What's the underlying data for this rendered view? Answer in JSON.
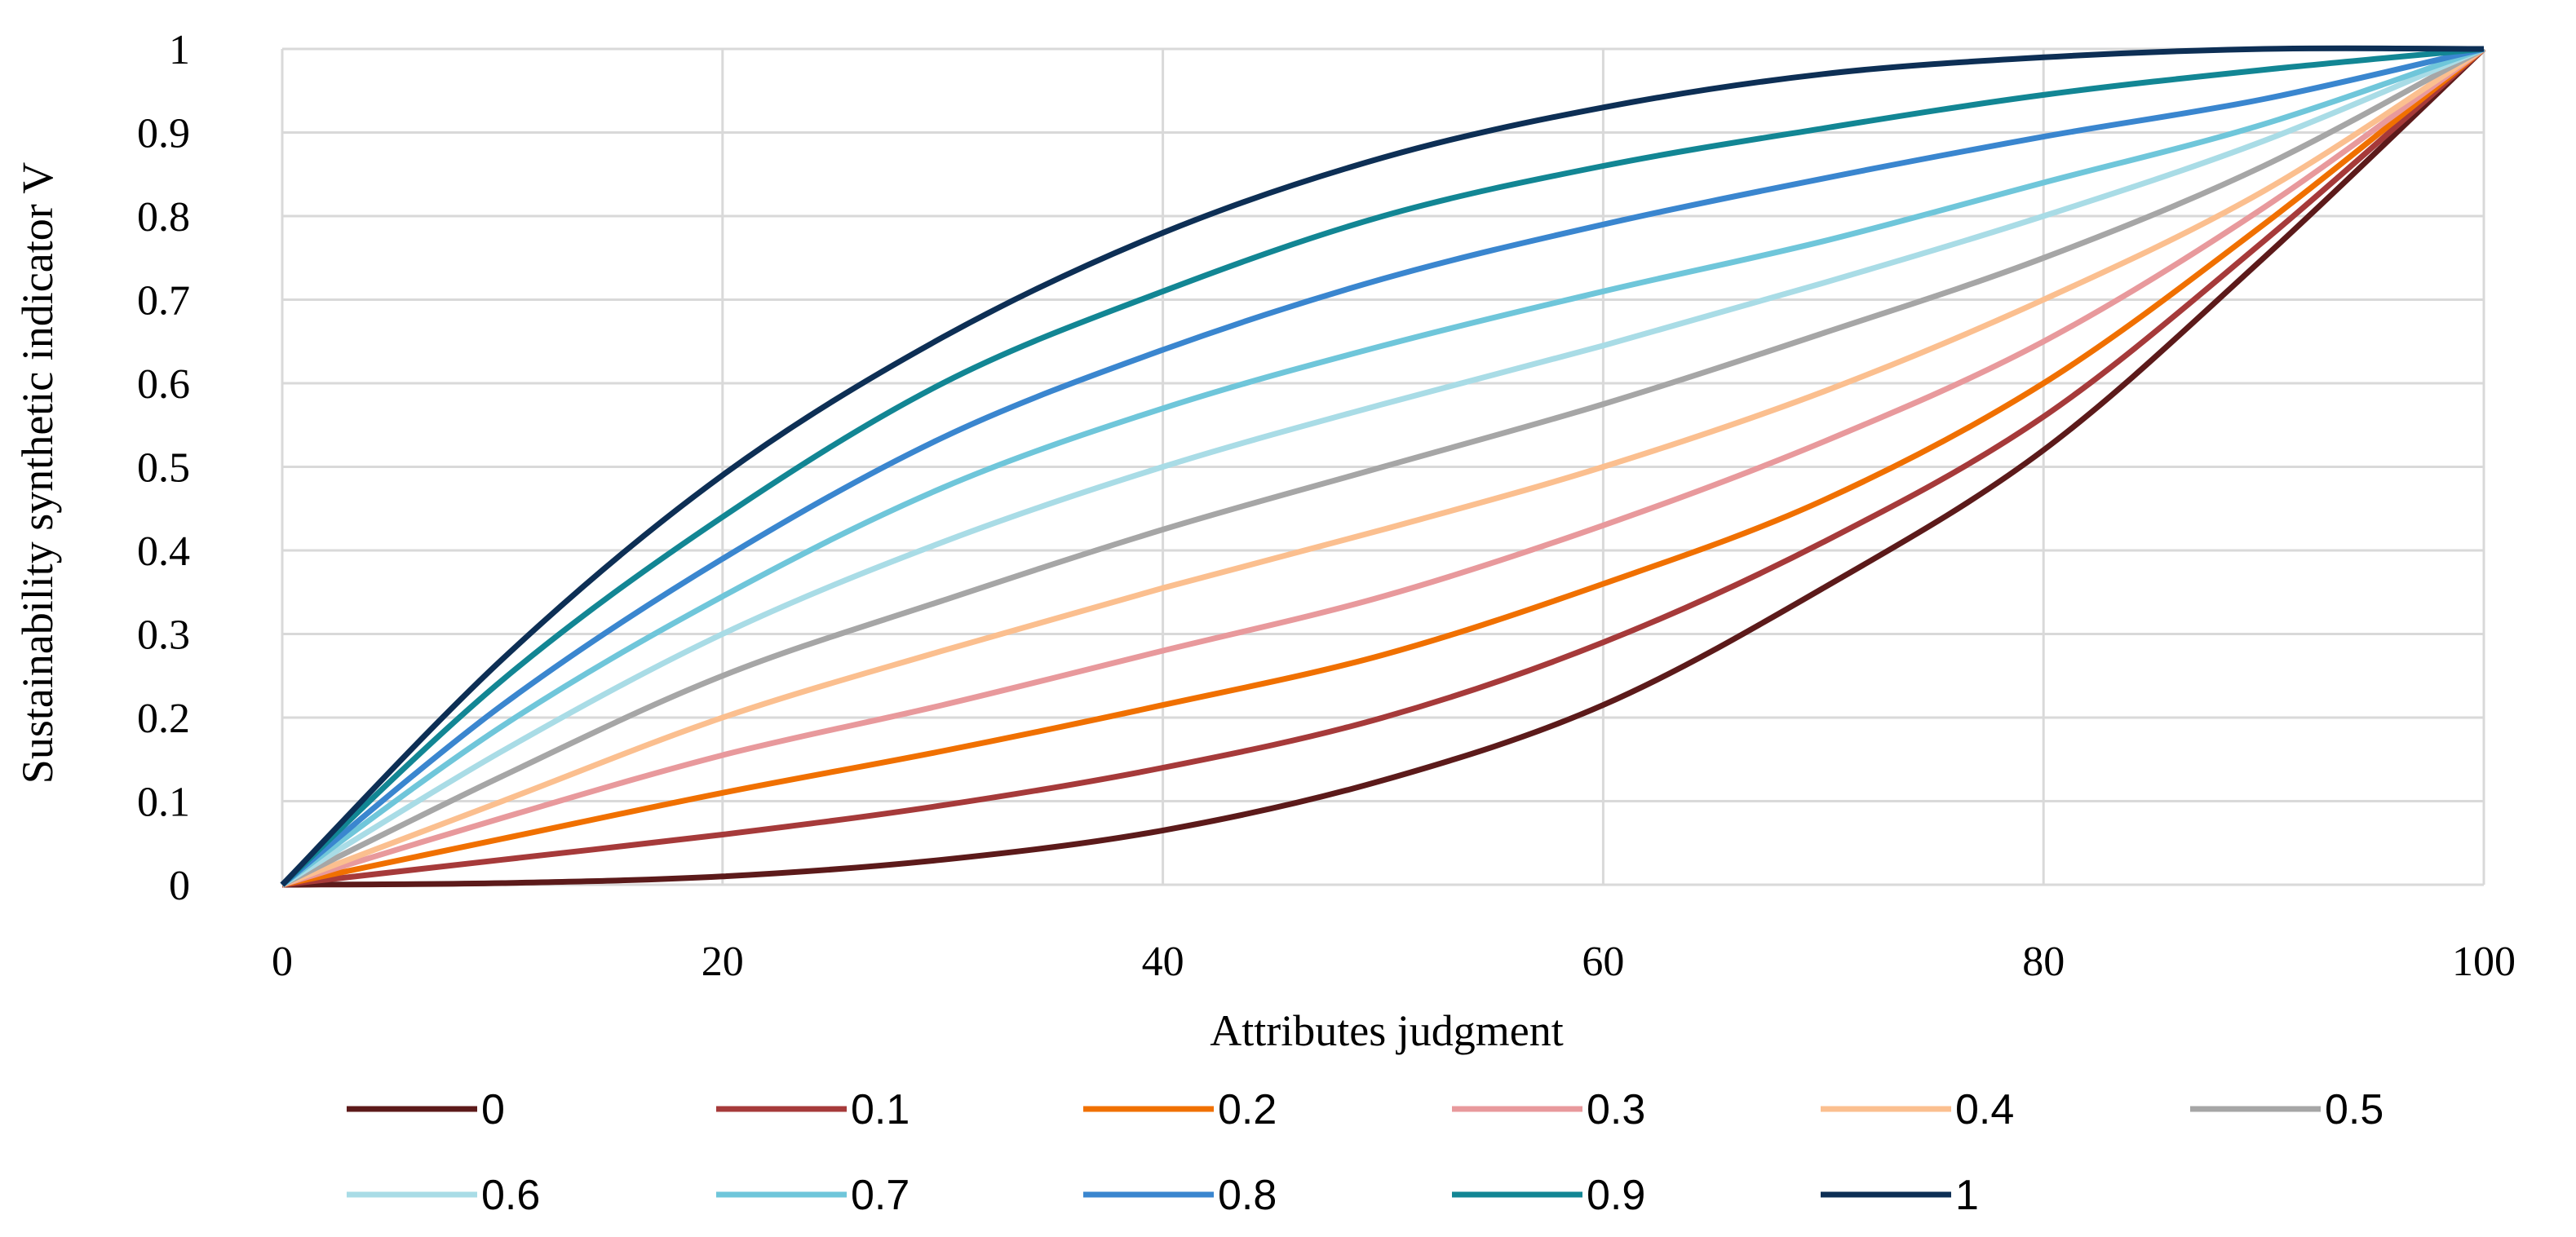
{
  "chart_data": {
    "type": "line",
    "title": "",
    "xlabel": "Attributes judgment",
    "ylabel": "Sustainability synthetic indicator V",
    "xlim": [
      0,
      100
    ],
    "ylim": [
      0,
      1
    ],
    "x_ticks": [
      "0",
      "20",
      "40",
      "60",
      "80",
      "100"
    ],
    "y_ticks": [
      "0",
      "0.1",
      "0.2",
      "0.3",
      "0.4",
      "0.5",
      "0.6",
      "0.7",
      "0.8",
      "0.9",
      "1"
    ],
    "grid": true,
    "legend_position": "bottom",
    "x": [
      0,
      10,
      20,
      30,
      40,
      50,
      60,
      70,
      80,
      90,
      100
    ],
    "series": [
      {
        "name": "0",
        "color": "#5c1a1a",
        "values": [
          0,
          0.002,
          0.01,
          0.03,
          0.065,
          0.125,
          0.215,
          0.355,
          0.52,
          0.75,
          1
        ]
      },
      {
        "name": "0.1",
        "color": "#a63a3a",
        "values": [
          0,
          0.03,
          0.06,
          0.095,
          0.14,
          0.2,
          0.29,
          0.41,
          0.56,
          0.77,
          1
        ]
      },
      {
        "name": "0.2",
        "color": "#f07000",
        "values": [
          0,
          0.055,
          0.11,
          0.16,
          0.215,
          0.275,
          0.36,
          0.46,
          0.6,
          0.79,
          1
        ]
      },
      {
        "name": "0.3",
        "color": "#e8999c",
        "values": [
          0,
          0.08,
          0.155,
          0.215,
          0.28,
          0.345,
          0.43,
          0.53,
          0.65,
          0.81,
          1
        ]
      },
      {
        "name": "0.4",
        "color": "#fbbf8f",
        "values": [
          0,
          0.1,
          0.2,
          0.28,
          0.355,
          0.425,
          0.5,
          0.59,
          0.7,
          0.83,
          1
        ]
      },
      {
        "name": "0.5",
        "color": "#a6a6a6",
        "values": [
          0,
          0.13,
          0.25,
          0.34,
          0.425,
          0.5,
          0.575,
          0.66,
          0.75,
          0.86,
          1
        ]
      },
      {
        "name": "0.6",
        "color": "#a9dce6",
        "values": [
          0,
          0.16,
          0.3,
          0.41,
          0.5,
          0.575,
          0.645,
          0.72,
          0.8,
          0.89,
          1
        ]
      },
      {
        "name": "0.7",
        "color": "#6fc6da",
        "values": [
          0,
          0.19,
          0.345,
          0.475,
          0.57,
          0.645,
          0.71,
          0.77,
          0.84,
          0.91,
          1
        ]
      },
      {
        "name": "0.8",
        "color": "#3a86cf",
        "values": [
          0,
          0.215,
          0.39,
          0.535,
          0.64,
          0.725,
          0.79,
          0.845,
          0.895,
          0.94,
          1
        ]
      },
      {
        "name": "0.9",
        "color": "#128694",
        "values": [
          0,
          0.245,
          0.44,
          0.6,
          0.71,
          0.8,
          0.86,
          0.905,
          0.945,
          0.975,
          1
        ]
      },
      {
        "name": "1",
        "color": "#0d2f55",
        "values": [
          0,
          0.27,
          0.49,
          0.655,
          0.78,
          0.87,
          0.93,
          0.97,
          0.99,
          1,
          1
        ]
      }
    ]
  }
}
